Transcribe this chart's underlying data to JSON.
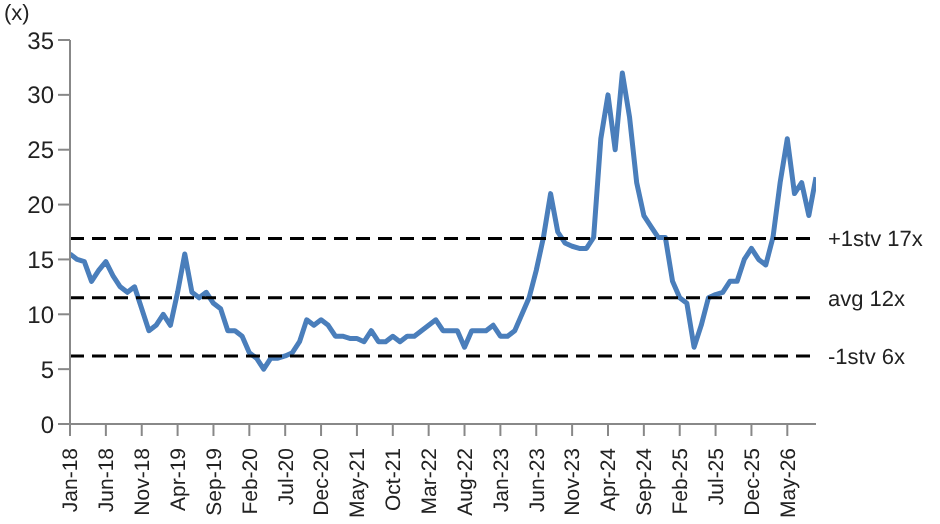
{
  "chart_data": {
    "type": "line",
    "ylabel": "(x)",
    "x": [
      "2018-01",
      "2018-02",
      "2018-03",
      "2018-04",
      "2018-05",
      "2018-06",
      "2018-07",
      "2018-08",
      "2018-09",
      "2018-10",
      "2018-11",
      "2018-12",
      "2019-01",
      "2019-02",
      "2019-03",
      "2019-04",
      "2019-05",
      "2019-06",
      "2019-07",
      "2019-08",
      "2019-09",
      "2019-10",
      "2019-11",
      "2019-12",
      "2020-01",
      "2020-02",
      "2020-03",
      "2020-04",
      "2020-05",
      "2020-06",
      "2020-07",
      "2020-08",
      "2020-09",
      "2020-10",
      "2020-11",
      "2020-12",
      "2021-01",
      "2021-02",
      "2021-03",
      "2021-04",
      "2021-05",
      "2021-06",
      "2021-07",
      "2021-08",
      "2021-09",
      "2021-10",
      "2021-11",
      "2021-12",
      "2022-01",
      "2022-02",
      "2022-03",
      "2022-04",
      "2022-05",
      "2022-06",
      "2022-07",
      "2022-08",
      "2022-09",
      "2022-10",
      "2022-11",
      "2022-12",
      "2023-01",
      "2023-02",
      "2023-03",
      "2023-04",
      "2023-05",
      "2023-06",
      "2023-07",
      "2023-08",
      "2023-09",
      "2023-10",
      "2023-11",
      "2023-12",
      "2024-01",
      "2024-02",
      "2024-03",
      "2024-04",
      "2024-05",
      "2024-06",
      "2024-07",
      "2024-08",
      "2024-09",
      "2024-10",
      "2024-11",
      "2024-12",
      "2025-01",
      "2025-02",
      "2025-03",
      "2025-04",
      "2025-05",
      "2025-06",
      "2025-07",
      "2025-08",
      "2025-09",
      "2025-10",
      "2025-11",
      "2025-12",
      "2026-01",
      "2026-02",
      "2026-03",
      "2026-04",
      "2026-05",
      "2026-06",
      "2026-07",
      "2026-08",
      "2026-09"
    ],
    "series": [
      {
        "color": "#4a7ebb",
        "values": [
          15.5,
          15,
          14.8,
          13,
          14,
          14.8,
          13.5,
          12.5,
          12,
          12.5,
          10.5,
          8.5,
          9,
          10,
          9,
          12,
          15.5,
          12,
          11.5,
          12,
          11,
          10.5,
          8.5,
          8.5,
          8,
          6.5,
          6,
          5,
          6,
          6,
          6.2,
          6.5,
          7.5,
          9.5,
          9,
          9.5,
          9,
          8,
          8,
          7.8,
          7.8,
          7.5,
          8.5,
          7.5,
          7.5,
          8,
          7.5,
          8,
          8,
          8.5,
          9,
          9.5,
          8.5,
          8.5,
          8.5,
          7,
          8.5,
          8.5,
          8.5,
          9,
          8,
          8,
          8.5,
          10,
          11.5,
          14,
          17,
          21,
          17.5,
          16.5,
          16.2,
          16,
          16,
          17,
          26,
          30,
          25,
          32,
          28,
          22,
          19,
          18,
          17,
          17,
          13,
          11.5,
          11,
          7,
          9,
          11.5,
          11.8,
          12,
          13,
          13,
          15,
          16,
          15,
          14.5,
          17,
          22,
          26,
          21,
          22,
          19,
          22.5
        ]
      }
    ],
    "xlim": [
      "2018-01",
      "2026-09"
    ],
    "xticks": [
      {
        "value": "2018-01",
        "label": "Jan-18"
      },
      {
        "value": "2018-06",
        "label": "Jun-18"
      },
      {
        "value": "2018-11",
        "label": "Nov-18"
      },
      {
        "value": "2019-04",
        "label": "Apr-19"
      },
      {
        "value": "2019-09",
        "label": "Sep-19"
      },
      {
        "value": "2020-02",
        "label": "Feb-20"
      },
      {
        "value": "2020-07",
        "label": "Jul-20"
      },
      {
        "value": "2020-12",
        "label": "Dec-20"
      },
      {
        "value": "2021-05",
        "label": "May-21"
      },
      {
        "value": "2021-10",
        "label": "Oct-21"
      },
      {
        "value": "2022-03",
        "label": "Mar-22"
      },
      {
        "value": "2022-08",
        "label": "Aug-22"
      },
      {
        "value": "2023-01",
        "label": "Jan-23"
      },
      {
        "value": "2023-06",
        "label": "Jun-23"
      },
      {
        "value": "2023-11",
        "label": "Nov-23"
      },
      {
        "value": "2024-04",
        "label": "Apr-24"
      },
      {
        "value": "2024-09",
        "label": "Sep-24"
      },
      {
        "value": "2025-02",
        "label": "Feb-25"
      },
      {
        "value": "2025-07",
        "label": "Jul-25"
      },
      {
        "value": "2025-12",
        "label": "Dec-25"
      },
      {
        "value": "2026-05",
        "label": "May-26"
      }
    ],
    "ylim": [
      0,
      35
    ],
    "yticks": [
      0,
      5,
      10,
      15,
      20,
      25,
      30,
      35
    ],
    "ref_lines": [
      {
        "axis": "y",
        "value": 16.9,
        "label": "+1stv 17x",
        "color": "#000000",
        "line_style": "dashed"
      },
      {
        "axis": "y",
        "value": 11.5,
        "label": "avg 12x",
        "color": "#000000",
        "line_style": "dashed"
      },
      {
        "axis": "y",
        "value": 6.2,
        "label": "-1stv 6x",
        "color": "#000000",
        "line_style": "dashed"
      }
    ],
    "grid": false,
    "legend": false,
    "marker": "none",
    "line_style": "solid"
  }
}
